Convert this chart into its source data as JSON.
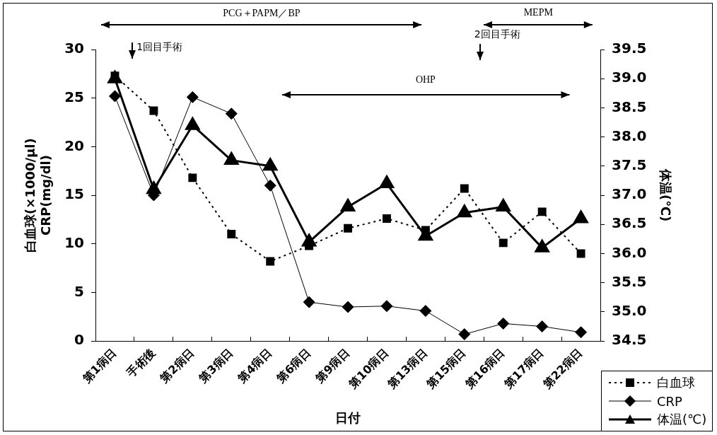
{
  "chart_data": {
    "type": "line",
    "xlabel": "日付",
    "ylabel": "白血球(×1000/μl)\nCRP(mg/dl)",
    "y2label": "体温(℃)",
    "categories": [
      "第1病日",
      "手術後",
      "第2病日",
      "第3病日",
      "第4病日",
      "第6病日",
      "第9病日",
      "第10病日",
      "第13病日",
      "第15病日",
      "第16病日",
      "第17病日",
      "第22病日"
    ],
    "series": [
      {
        "name": "白血球",
        "color": "#000000",
        "marker": "square",
        "line_style": "dotted",
        "values": [
          27.3,
          23.7,
          16.8,
          11.0,
          8.2,
          9.8,
          11.6,
          12.6,
          11.4,
          15.7,
          10.1,
          13.3,
          9.0
        ]
      },
      {
        "name": "CRP",
        "color": "#000000",
        "marker": "diamond",
        "line_style": "solid",
        "values": [
          25.2,
          15.0,
          25.1,
          23.4,
          16.0,
          4.0,
          3.5,
          3.6,
          3.1,
          0.7,
          1.8,
          1.5,
          0.9
        ]
      },
      {
        "name": "体温(℃)",
        "color": "#000000",
        "marker": "triangle",
        "line_style": "solid",
        "axis": "y2",
        "values": [
          39.0,
          37.1,
          38.2,
          37.6,
          37.5,
          36.2,
          36.8,
          37.2,
          36.3,
          36.7,
          36.8,
          36.1,
          36.6
        ]
      }
    ],
    "ylim": [
      0,
      30
    ],
    "yticks": [
      0,
      5,
      10,
      15,
      20,
      25,
      30
    ],
    "y2lim": [
      34.5,
      39.5
    ],
    "y2ticks": [
      {
        "value": 34.5,
        "label": "34.5"
      },
      {
        "value": 35,
        "label": "35.0"
      },
      {
        "value": 35.5,
        "label": "35.5"
      },
      {
        "value": 36,
        "label": "36.0"
      },
      {
        "value": 36.5,
        "label": "36.5"
      },
      {
        "value": 37,
        "label": "37.0"
      },
      {
        "value": 37.5,
        "label": "37.5"
      },
      {
        "value": 38,
        "label": "38.0"
      },
      {
        "value": 38.5,
        "label": "38.5"
      },
      {
        "value": 39,
        "label": "39.0"
      },
      {
        "value": 39.5,
        "label": "39.5"
      }
    ],
    "grid": false,
    "legend": "bottom right",
    "annotations": [
      "PCG＋PAPM／BP",
      "OHP",
      "MEPM",
      "1回目手術",
      "2回目手術"
    ]
  }
}
